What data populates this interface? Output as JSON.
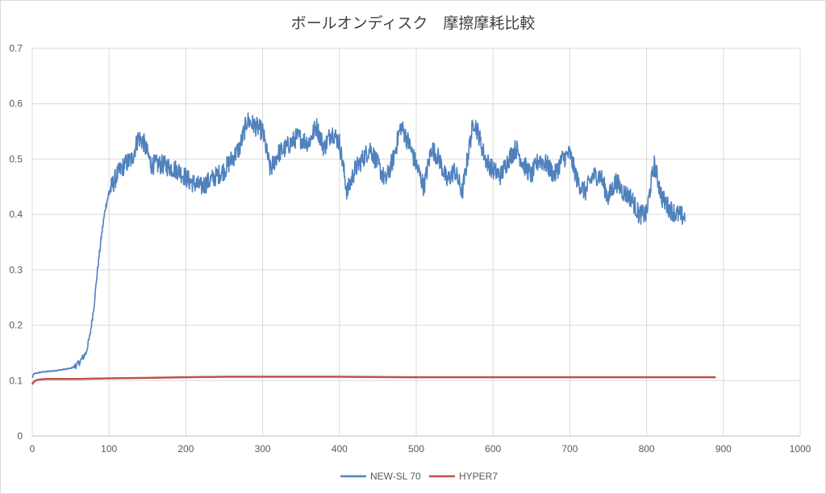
{
  "chart_data": {
    "type": "line",
    "title": "ボールオンディスク　摩擦摩耗比較",
    "xlabel": "",
    "ylabel": "",
    "xlim": [
      0,
      1000
    ],
    "ylim": [
      0,
      0.7
    ],
    "xticks": [
      0,
      100,
      200,
      300,
      400,
      500,
      600,
      700,
      800,
      900,
      1000
    ],
    "yticks": [
      0,
      0.1,
      0.2,
      0.3,
      0.4,
      0.5,
      0.6,
      0.7
    ],
    "ytick_labels": [
      "0",
      "0.1",
      "0.2",
      "0.3",
      "0.4",
      "0.5",
      "0.6",
      "0.7"
    ],
    "grid": true,
    "legend_position": "bottom-center",
    "series": [
      {
        "name": "NEW-SL 70",
        "color": "#4f81bd",
        "noisy": true,
        "x": [
          0,
          2,
          10,
          30,
          50,
          60,
          70,
          75,
          80,
          85,
          90,
          95,
          100,
          110,
          120,
          130,
          138,
          145,
          155,
          170,
          190,
          205,
          220,
          240,
          250,
          260,
          270,
          280,
          290,
          300,
          310,
          320,
          330,
          345,
          360,
          370,
          380,
          390,
          400,
          410,
          420,
          430,
          440,
          450,
          460,
          470,
          480,
          490,
          500,
          510,
          520,
          530,
          540,
          550,
          560,
          570,
          575,
          580,
          590,
          600,
          610,
          620,
          630,
          640,
          650,
          660,
          670,
          680,
          690,
          700,
          710,
          720,
          730,
          740,
          750,
          760,
          770,
          780,
          790,
          800,
          805,
          810,
          815,
          820,
          830,
          840,
          850
        ],
        "y": [
          0.105,
          0.112,
          0.115,
          0.118,
          0.122,
          0.13,
          0.15,
          0.18,
          0.23,
          0.3,
          0.36,
          0.41,
          0.44,
          0.47,
          0.49,
          0.5,
          0.54,
          0.53,
          0.49,
          0.49,
          0.48,
          0.46,
          0.45,
          0.47,
          0.48,
          0.5,
          0.52,
          0.57,
          0.56,
          0.55,
          0.48,
          0.51,
          0.52,
          0.54,
          0.53,
          0.56,
          0.52,
          0.55,
          0.53,
          0.44,
          0.48,
          0.5,
          0.52,
          0.49,
          0.46,
          0.5,
          0.56,
          0.53,
          0.49,
          0.45,
          0.52,
          0.5,
          0.46,
          0.48,
          0.44,
          0.53,
          0.57,
          0.55,
          0.5,
          0.48,
          0.47,
          0.5,
          0.52,
          0.49,
          0.47,
          0.5,
          0.49,
          0.47,
          0.5,
          0.51,
          0.46,
          0.44,
          0.47,
          0.47,
          0.43,
          0.46,
          0.44,
          0.43,
          0.4,
          0.4,
          0.45,
          0.49,
          0.46,
          0.43,
          0.41,
          0.4,
          0.395
        ]
      },
      {
        "name": "HYPER7",
        "color": "#c0504d",
        "noisy": false,
        "x": [
          0,
          1,
          3,
          6,
          10,
          20,
          40,
          60,
          100,
          150,
          200,
          250,
          300,
          400,
          500,
          600,
          700,
          800,
          890
        ],
        "y": [
          0.093,
          0.096,
          0.099,
          0.101,
          0.102,
          0.103,
          0.103,
          0.103,
          0.104,
          0.105,
          0.106,
          0.107,
          0.107,
          0.107,
          0.106,
          0.106,
          0.106,
          0.106,
          0.106
        ]
      }
    ]
  }
}
